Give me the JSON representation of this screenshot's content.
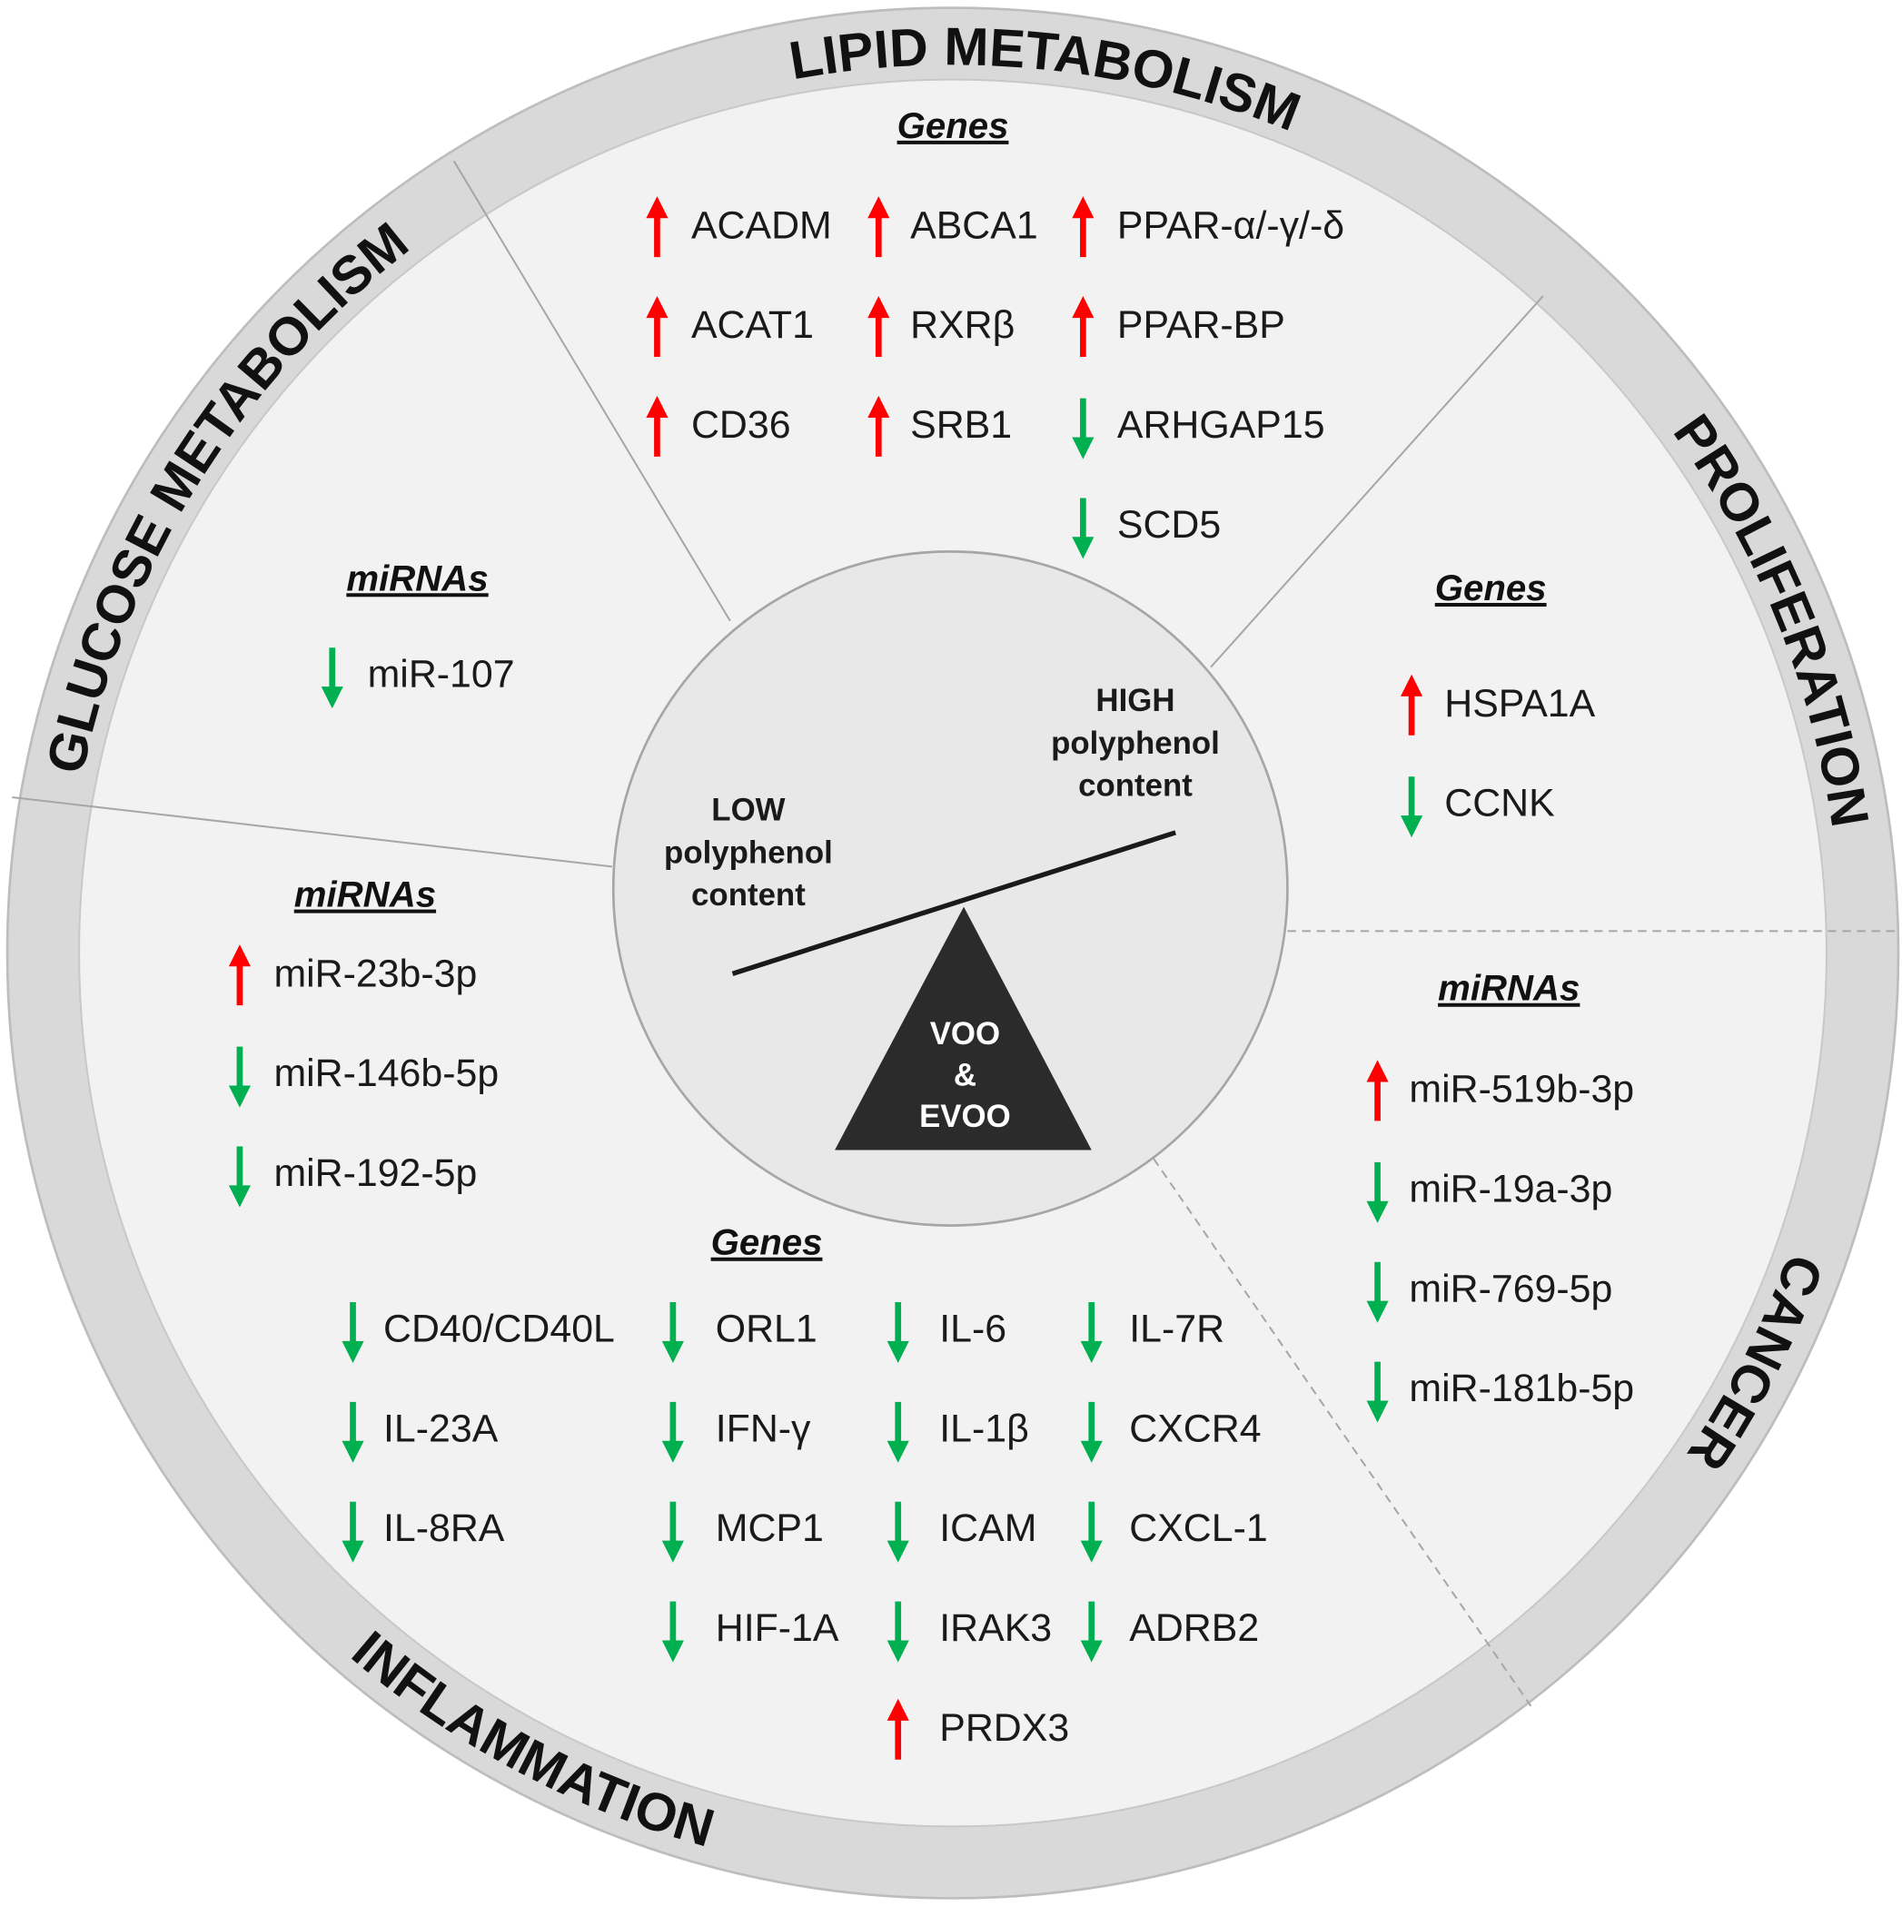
{
  "sections": [
    {
      "title": "LIPID METABOLISM",
      "groups": [
        {
          "heading": "Genes",
          "columns": [
            [
              {
                "name": "ACADM",
                "direction": "up"
              },
              {
                "name": "ACAT1",
                "direction": "up"
              },
              {
                "name": "CD36",
                "direction": "up"
              }
            ],
            [
              {
                "name": "ABCA1",
                "direction": "up"
              },
              {
                "name": "RXRβ",
                "direction": "up"
              },
              {
                "name": "SRB1",
                "direction": "up"
              }
            ],
            [
              {
                "name": "PPAR-α/-γ/-δ",
                "direction": "up"
              },
              {
                "name": "PPAR-BP",
                "direction": "up"
              },
              {
                "name": "ARHGAP15",
                "direction": "down"
              },
              {
                "name": "SCD5",
                "direction": "down"
              }
            ]
          ]
        }
      ]
    },
    {
      "title": "GLUCOSE METABOLISM",
      "groups": [
        {
          "heading": "miRNAs",
          "columns": [
            [
              {
                "name": "miR-107",
                "direction": "down"
              }
            ]
          ]
        }
      ]
    },
    {
      "title": "PROLIFERATION",
      "groups": [
        {
          "heading": "Genes",
          "columns": [
            [
              {
                "name": "HSPA1A",
                "direction": "up"
              },
              {
                "name": "CCNK",
                "direction": "down"
              }
            ]
          ]
        }
      ]
    },
    {
      "title": "CANCER",
      "groups": [
        {
          "heading": "miRNAs",
          "columns": [
            [
              {
                "name": "miR-519b-3p",
                "direction": "up"
              },
              {
                "name": "miR-19a-3p",
                "direction": "down"
              },
              {
                "name": "miR-769-5p",
                "direction": "down"
              },
              {
                "name": "miR-181b-5p",
                "direction": "down"
              }
            ]
          ]
        }
      ]
    },
    {
      "title": "INFLAMMATION",
      "groups": [
        {
          "heading": "miRNAs",
          "columns": [
            [
              {
                "name": "miR-23b-3p",
                "direction": "up"
              },
              {
                "name": "miR-146b-5p",
                "direction": "down"
              },
              {
                "name": "miR-192-5p",
                "direction": "down"
              }
            ]
          ]
        },
        {
          "heading": "Genes",
          "columns": [
            [
              {
                "name": "CD40/CD40L",
                "direction": "down"
              },
              {
                "name": "IL-23A",
                "direction": "down"
              },
              {
                "name": "IL-8RA",
                "direction": "down"
              }
            ],
            [
              {
                "name": "ORL1",
                "direction": "down"
              },
              {
                "name": "IFN-γ",
                "direction": "down"
              },
              {
                "name": "MCP1",
                "direction": "down"
              },
              {
                "name": "HIF-1A",
                "direction": "down"
              }
            ],
            [
              {
                "name": "IL-6",
                "direction": "down"
              },
              {
                "name": "IL-1β",
                "direction": "down"
              },
              {
                "name": "ICAM",
                "direction": "down"
              },
              {
                "name": "IRAK3",
                "direction": "down"
              },
              {
                "name": "PRDX3",
                "direction": "up"
              }
            ],
            [
              {
                "name": "IL-7R",
                "direction": "down"
              },
              {
                "name": "CXCR4",
                "direction": "down"
              },
              {
                "name": "CXCL-1",
                "direction": "down"
              },
              {
                "name": "ADRB2",
                "direction": "down"
              }
            ]
          ]
        }
      ]
    }
  ],
  "center": {
    "low_label": [
      "LOW",
      "polyphenol",
      "content"
    ],
    "high_label": [
      "HIGH",
      "polyphenol",
      "content"
    ],
    "fulcrum_label": [
      "VOO",
      "&",
      "EVOO"
    ]
  }
}
